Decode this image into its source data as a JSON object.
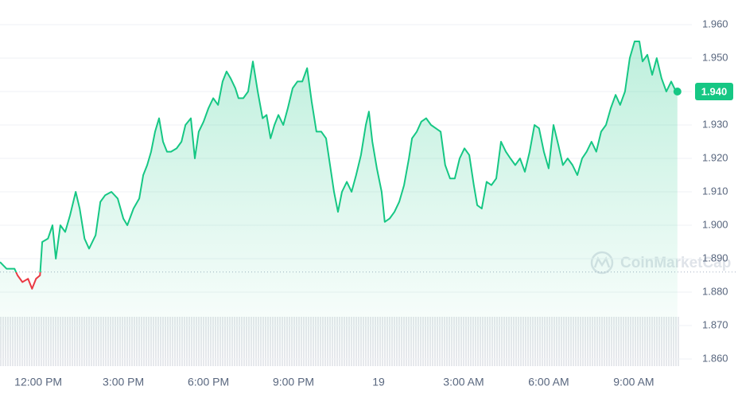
{
  "chart_data": {
    "type": "line",
    "x": [
      10.65,
      10.88,
      11.16,
      11.27,
      11.44,
      11.64,
      11.78,
      11.92,
      12.06,
      12.14,
      12.34,
      12.5,
      12.62,
      12.78,
      12.95,
      13.12,
      13.32,
      13.46,
      13.63,
      13.79,
      14.02,
      14.19,
      14.36,
      14.58,
      14.8,
      15.0,
      15.14,
      15.36,
      15.56,
      15.7,
      15.84,
      15.98,
      16.12,
      16.26,
      16.4,
      16.54,
      16.68,
      16.88,
      17.05,
      17.19,
      17.38,
      17.52,
      17.66,
      17.83,
      18.0,
      18.17,
      18.34,
      18.5,
      18.64,
      18.78,
      18.95,
      19.06,
      19.23,
      19.4,
      19.57,
      19.74,
      19.91,
      20.05,
      20.19,
      20.33,
      20.47,
      20.64,
      20.8,
      20.97,
      21.14,
      21.31,
      21.48,
      21.64,
      21.81,
      21.98,
      22.15,
      22.29,
      22.43,
      22.57,
      22.71,
      22.88,
      23.05,
      23.21,
      23.38,
      23.55,
      23.66,
      23.78,
      23.94,
      24.11,
      24.22,
      24.39,
      24.56,
      24.73,
      24.9,
      25.07,
      25.18,
      25.35,
      25.51,
      25.68,
      25.85,
      26.02,
      26.19,
      26.35,
      26.52,
      26.69,
      26.86,
      27.03,
      27.2,
      27.36,
      27.48,
      27.64,
      27.81,
      27.98,
      28.15,
      28.32,
      28.49,
      28.65,
      28.82,
      28.99,
      29.16,
      29.33,
      29.5,
      29.66,
      29.83,
      30.0,
      30.17,
      30.34,
      30.5,
      30.67,
      30.84,
      31.01,
      31.18,
      31.34,
      31.51,
      31.68,
      31.85,
      32.02,
      32.19,
      32.36,
      32.52,
      32.69,
      32.86,
      33.03,
      33.2,
      33.31,
      33.48,
      33.65,
      33.81,
      33.98,
      34.15,
      34.32,
      34.49,
      34.54
    ],
    "series": [
      {
        "color": "#16c784",
        "values": [
          1.889,
          1.887,
          1.887,
          1.885,
          1.883,
          1.884,
          1.881,
          1.884,
          1.885,
          1.895,
          1.896,
          1.9,
          1.89,
          1.9,
          1.898,
          1.903,
          1.91,
          1.905,
          1.896,
          1.893,
          1.897,
          1.907,
          1.909,
          1.91,
          1.908,
          1.902,
          1.9,
          1.905,
          1.908,
          1.915,
          1.918,
          1.922,
          1.928,
          1.932,
          1.925,
          1.922,
          1.922,
          1.923,
          1.925,
          1.93,
          1.932,
          1.92,
          1.928,
          1.931,
          1.935,
          1.938,
          1.936,
          1.943,
          1.946,
          1.944,
          1.941,
          1.938,
          1.938,
          1.94,
          1.949,
          1.94,
          1.932,
          1.933,
          1.926,
          1.93,
          1.933,
          1.93,
          1.935,
          1.941,
          1.943,
          1.943,
          1.947,
          1.937,
          1.928,
          1.928,
          1.926,
          1.918,
          1.91,
          1.904,
          1.91,
          1.913,
          1.91,
          1.915,
          1.921,
          1.93,
          1.934,
          1.925,
          1.917,
          1.91,
          1.901,
          1.902,
          1.904,
          1.907,
          1.912,
          1.92,
          1.926,
          1.928,
          1.931,
          1.932,
          1.93,
          1.929,
          1.928,
          1.918,
          1.914,
          1.914,
          1.92,
          1.923,
          1.921,
          1.912,
          1.906,
          1.905,
          1.913,
          1.912,
          1.914,
          1.925,
          1.922,
          1.92,
          1.918,
          1.92,
          1.916,
          1.922,
          1.93,
          1.929,
          1.922,
          1.917,
          1.93,
          1.924,
          1.918,
          1.92,
          1.918,
          1.915,
          1.92,
          1.922,
          1.925,
          1.922,
          1.928,
          1.93,
          1.935,
          1.939,
          1.936,
          1.94,
          1.95,
          1.955,
          1.955,
          1.949,
          1.951,
          1.945,
          1.95,
          1.944,
          1.94,
          1.943,
          1.94,
          1.94
        ]
      }
    ],
    "down_color": "#ea3943",
    "reference_line": 1.886,
    "current_price": {
      "value": 1.94,
      "label": "1.940"
    },
    "xlim": [
      10.65,
      35.05
    ],
    "xticks": [
      {
        "value": 12,
        "label": "12:00 PM"
      },
      {
        "value": 15,
        "label": "3:00 PM"
      },
      {
        "value": 18,
        "label": "6:00 PM"
      },
      {
        "value": 21,
        "label": "9:00 PM"
      },
      {
        "value": 24,
        "label": "19"
      },
      {
        "value": 27,
        "label": "3:00 AM"
      },
      {
        "value": 30,
        "label": "6:00 AM"
      },
      {
        "value": 33,
        "label": "9:00 AM"
      }
    ],
    "ylim": [
      1.86,
      1.96
    ],
    "yticks": [
      {
        "value": 1.86,
        "label": "1.860"
      },
      {
        "value": 1.87,
        "label": "1.870"
      },
      {
        "value": 1.88,
        "label": "1.880"
      },
      {
        "value": 1.89,
        "label": "1.890"
      },
      {
        "value": 1.9,
        "label": "1.900"
      },
      {
        "value": 1.91,
        "label": "1.910"
      },
      {
        "value": 1.92,
        "label": "1.920"
      },
      {
        "value": 1.93,
        "label": "1.930"
      },
      {
        "value": 1.94,
        "label": "1.940"
      },
      {
        "value": 1.95,
        "label": "1.950"
      },
      {
        "value": 1.96,
        "label": "1.960"
      }
    ],
    "grid": true,
    "watermark": "CoinMarketCap"
  }
}
